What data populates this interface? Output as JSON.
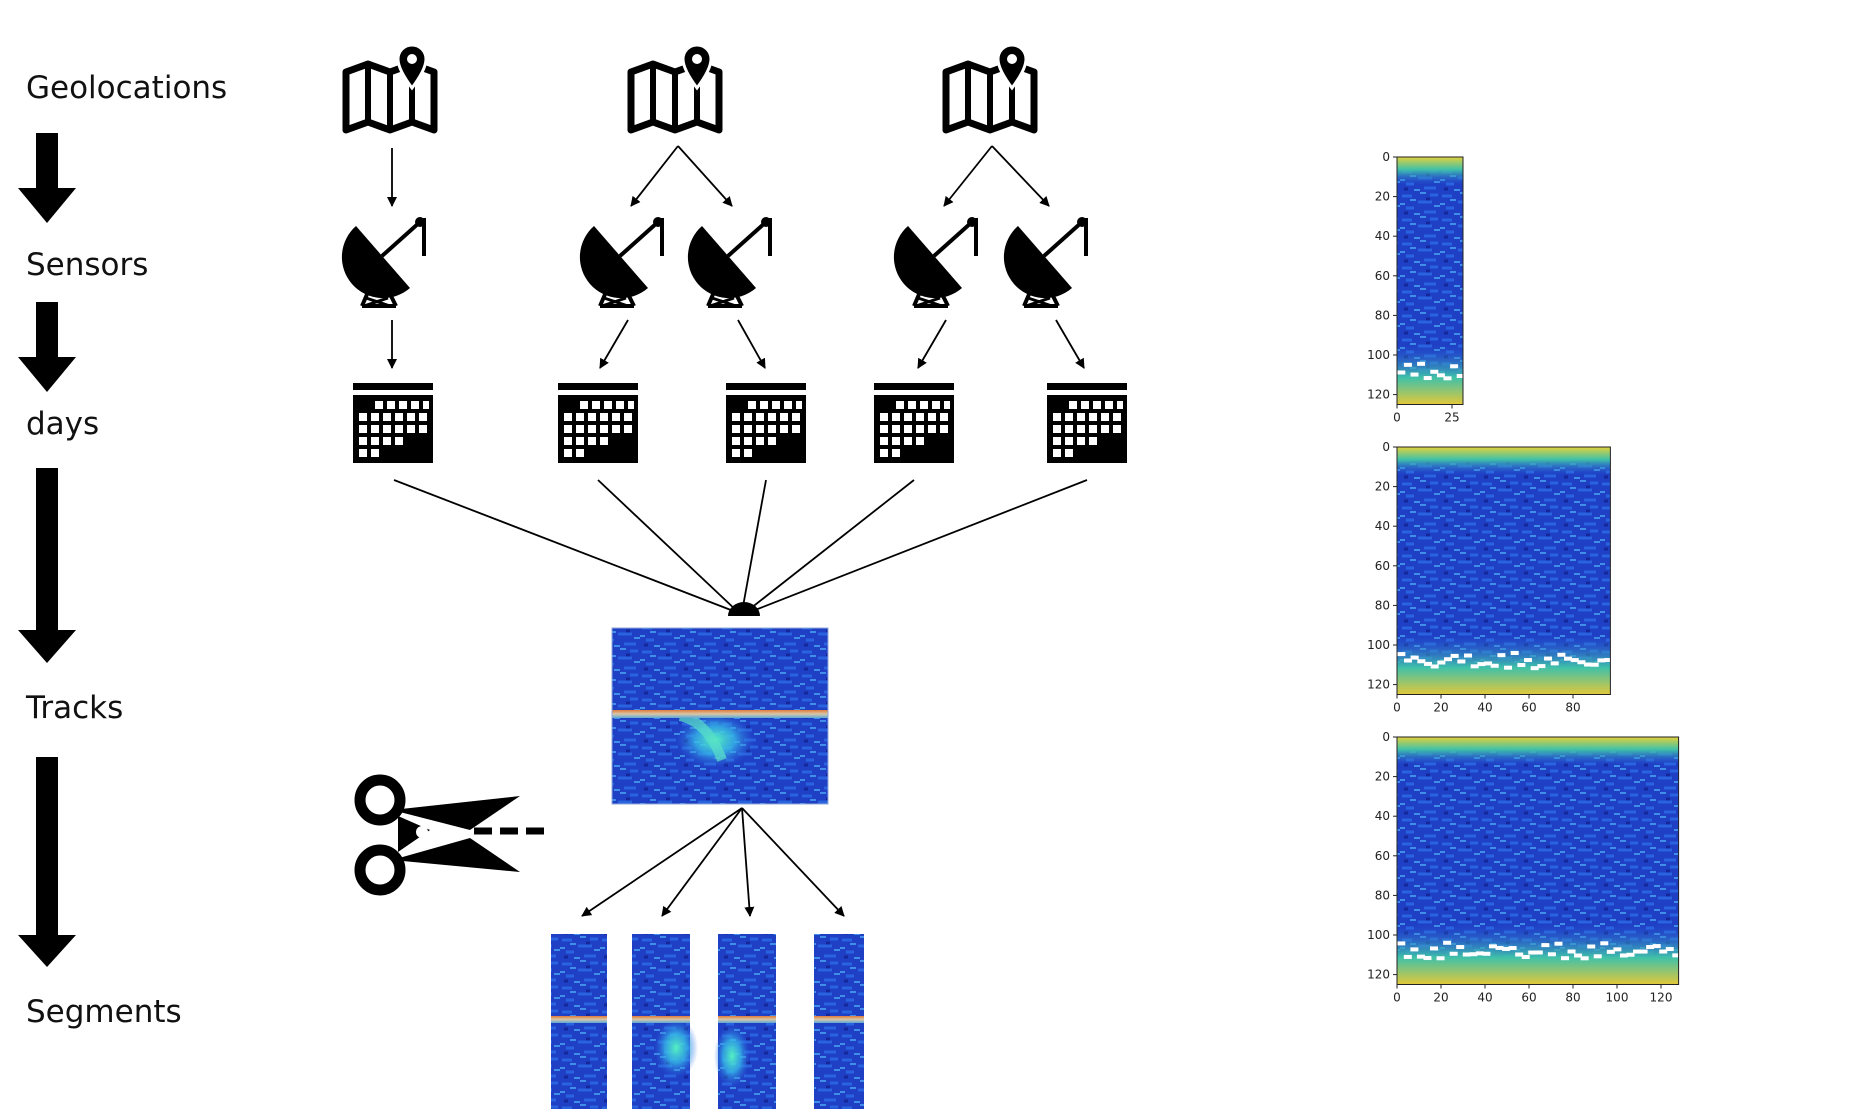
{
  "stages": [
    "Geolocations",
    "Sensors",
    "days",
    "Tracks",
    "Segments"
  ],
  "icons": {
    "location": "map-pin-icon",
    "sensor": "satellite-dish-icon",
    "day": "calendar-icon",
    "cut": "scissors-icon"
  },
  "hierarchy": {
    "geolocations": 3,
    "sensors_per_geolocation": [
      1,
      2,
      2
    ],
    "segments_per_track": 4
  },
  "spectrograms": [
    {
      "width": 30,
      "height": 125,
      "x_ticks": [
        "0",
        "25"
      ],
      "y_ticks": [
        "0",
        "20",
        "40",
        "60",
        "80",
        "100",
        "120"
      ]
    },
    {
      "width": 97,
      "height": 125,
      "x_ticks": [
        "0",
        "20",
        "40",
        "60",
        "80"
      ],
      "y_ticks": [
        "0",
        "20",
        "40",
        "60",
        "80",
        "100",
        "120"
      ]
    },
    {
      "width": 128,
      "height": 125,
      "x_ticks": [
        "0",
        "20",
        "40",
        "60",
        "80",
        "100",
        "120"
      ],
      "y_ticks": [
        "0",
        "20",
        "40",
        "60",
        "80",
        "100",
        "120"
      ]
    }
  ],
  "colors": {
    "spectrogram_background": "#1f3fc4",
    "spectrogram_noise": "#2a63e0",
    "spectrogram_high": "#f2e635",
    "track_line": "#d9a06a",
    "icon": "#000000"
  }
}
